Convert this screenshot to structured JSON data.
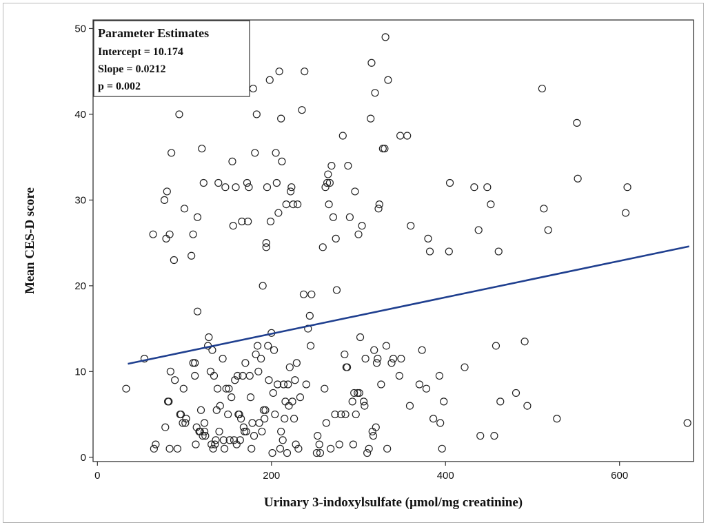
{
  "chart_data": {
    "type": "scatter",
    "xlabel": "Urinary 3-indoxylsulfate (µmol/mg creatinine)",
    "ylabel": "Mean CES-D score",
    "xlim": [
      -5,
      685
    ],
    "ylim": [
      -0.5,
      51
    ],
    "xticks": [
      0,
      200,
      400,
      600
    ],
    "yticks": [
      0,
      10,
      20,
      30,
      40,
      50
    ],
    "grid": false,
    "legend_position": "top-left",
    "parameter_estimates": {
      "title": "Parameter Estimates",
      "lines": [
        "Intercept = 10.174",
        "Slope = 0.0212",
        "p =  0.002"
      ]
    },
    "fit_line": {
      "x": [
        35,
        680
      ],
      "y": [
        10.9,
        24.6
      ],
      "color": "#1f3f8f"
    },
    "marker_color": "#222222",
    "points": [
      [
        33,
        8
      ],
      [
        54,
        11.5
      ],
      [
        64,
        26
      ],
      [
        65,
        1
      ],
      [
        67,
        1.5
      ],
      [
        77,
        30
      ],
      [
        78,
        3.5
      ],
      [
        79,
        25.5
      ],
      [
        80,
        31
      ],
      [
        81,
        6.5
      ],
      [
        82,
        6.5
      ],
      [
        83,
        26
      ],
      [
        83,
        1
      ],
      [
        84,
        10
      ],
      [
        85,
        35.5
      ],
      [
        88,
        23
      ],
      [
        89,
        9
      ],
      [
        92,
        1
      ],
      [
        94,
        40
      ],
      [
        95,
        5
      ],
      [
        96,
        5
      ],
      [
        98,
        4
      ],
      [
        99,
        8
      ],
      [
        100,
        29
      ],
      [
        101,
        4
      ],
      [
        102,
        4.5
      ],
      [
        108,
        23.5
      ],
      [
        110,
        26
      ],
      [
        110,
        11
      ],
      [
        112,
        11
      ],
      [
        112,
        9.5
      ],
      [
        113,
        1.5
      ],
      [
        114,
        3.5
      ],
      [
        115,
        28
      ],
      [
        115,
        17
      ],
      [
        117,
        3
      ],
      [
        118,
        3
      ],
      [
        119,
        5.5
      ],
      [
        120,
        36
      ],
      [
        121,
        2.5
      ],
      [
        122,
        32
      ],
      [
        123,
        3
      ],
      [
        123,
        4
      ],
      [
        124,
        2.5
      ],
      [
        127,
        13
      ],
      [
        128,
        14
      ],
      [
        130,
        10
      ],
      [
        131,
        1.5
      ],
      [
        132,
        12.5
      ],
      [
        133,
        1
      ],
      [
        134,
        9.5
      ],
      [
        135,
        1.5
      ],
      [
        136,
        2
      ],
      [
        137,
        5.5
      ],
      [
        138,
        8
      ],
      [
        139,
        32
      ],
      [
        140,
        3
      ],
      [
        141,
        6
      ],
      [
        144,
        11.5
      ],
      [
        145,
        2
      ],
      [
        146,
        1
      ],
      [
        147,
        31.5
      ],
      [
        148,
        8
      ],
      [
        150,
        5
      ],
      [
        151,
        8
      ],
      [
        152,
        2
      ],
      [
        154,
        7
      ],
      [
        155,
        34.5
      ],
      [
        156,
        27
      ],
      [
        157,
        2
      ],
      [
        158,
        9
      ],
      [
        159,
        31.5
      ],
      [
        160,
        1.5
      ],
      [
        161,
        9.5
      ],
      [
        162,
        5
      ],
      [
        163,
        5
      ],
      [
        164,
        2
      ],
      [
        165,
        4.5
      ],
      [
        166,
        27.5
      ],
      [
        167,
        9.5
      ],
      [
        168,
        3.5
      ],
      [
        169,
        3
      ],
      [
        170,
        11
      ],
      [
        171,
        3
      ],
      [
        172,
        32
      ],
      [
        173,
        27.5
      ],
      [
        174,
        31.5
      ],
      [
        175,
        9.5
      ],
      [
        176,
        7
      ],
      [
        177,
        1
      ],
      [
        178,
        4
      ],
      [
        179,
        43
      ],
      [
        180,
        2.5
      ],
      [
        181,
        35.5
      ],
      [
        182,
        12
      ],
      [
        183,
        40
      ],
      [
        184,
        13
      ],
      [
        185,
        10
      ],
      [
        186,
        4
      ],
      [
        188,
        11.5
      ],
      [
        189,
        3
      ],
      [
        190,
        20
      ],
      [
        191,
        5.5
      ],
      [
        192,
        4.5
      ],
      [
        193,
        5.5
      ],
      [
        194,
        25
      ],
      [
        194,
        24.5
      ],
      [
        195,
        31.5
      ],
      [
        196,
        13
      ],
      [
        197,
        9
      ],
      [
        198,
        44
      ],
      [
        199,
        27.5
      ],
      [
        200,
        14.5
      ],
      [
        201,
        0.5
      ],
      [
        202,
        7.5
      ],
      [
        203,
        12.5
      ],
      [
        204,
        5
      ],
      [
        205,
        35.5
      ],
      [
        206,
        32
      ],
      [
        207,
        8.5
      ],
      [
        208,
        28.5
      ],
      [
        209,
        45
      ],
      [
        210,
        1
      ],
      [
        211,
        3
      ],
      [
        211,
        39.5
      ],
      [
        212,
        34.5
      ],
      [
        213,
        2
      ],
      [
        214,
        8.5
      ],
      [
        215,
        4.5
      ],
      [
        216,
        6.5
      ],
      [
        217,
        29.5
      ],
      [
        218,
        0.5
      ],
      [
        219,
        8.5
      ],
      [
        220,
        6
      ],
      [
        221,
        10.5
      ],
      [
        222,
        31
      ],
      [
        223,
        31.5
      ],
      [
        224,
        6.5
      ],
      [
        225,
        29.5
      ],
      [
        226,
        4.5
      ],
      [
        227,
        9
      ],
      [
        228,
        1.5
      ],
      [
        229,
        11
      ],
      [
        230,
        29.5
      ],
      [
        231,
        1
      ],
      [
        233,
        7
      ],
      [
        235,
        40.5
      ],
      [
        237,
        19
      ],
      [
        238,
        45
      ],
      [
        240,
        8.5
      ],
      [
        242,
        15
      ],
      [
        244,
        16.5
      ],
      [
        245,
        13
      ],
      [
        246,
        19
      ],
      [
        252,
        0.5
      ],
      [
        253,
        2.5
      ],
      [
        255,
        1.5
      ],
      [
        256,
        0.5
      ],
      [
        259,
        24.5
      ],
      [
        261,
        8
      ],
      [
        262,
        31.5
      ],
      [
        263,
        4
      ],
      [
        264,
        32
      ],
      [
        265,
        33
      ],
      [
        266,
        29.5
      ],
      [
        267,
        32
      ],
      [
        268,
        1
      ],
      [
        269,
        34
      ],
      [
        271,
        28
      ],
      [
        273,
        5
      ],
      [
        274,
        25.5
      ],
      [
        275,
        19.5
      ],
      [
        278,
        1.5
      ],
      [
        280,
        5
      ],
      [
        282,
        37.5
      ],
      [
        284,
        12
      ],
      [
        285,
        5
      ],
      [
        286,
        10.5
      ],
      [
        287,
        10.5
      ],
      [
        288,
        34
      ],
      [
        290,
        28
      ],
      [
        293,
        6.5
      ],
      [
        294,
        1.5
      ],
      [
        295,
        7.5
      ],
      [
        296,
        31
      ],
      [
        297,
        5
      ],
      [
        299,
        7.5
      ],
      [
        300,
        26
      ],
      [
        301,
        7.5
      ],
      [
        302,
        14
      ],
      [
        304,
        27
      ],
      [
        306,
        6.5
      ],
      [
        307,
        6
      ],
      [
        308,
        11.5
      ],
      [
        310,
        0.5
      ],
      [
        312,
        1
      ],
      [
        314,
        39.5
      ],
      [
        315,
        46
      ],
      [
        316,
        3
      ],
      [
        317,
        2.5
      ],
      [
        318,
        12.5
      ],
      [
        319,
        42.5
      ],
      [
        320,
        3.5
      ],
      [
        321,
        11
      ],
      [
        322,
        11.5
      ],
      [
        323,
        29
      ],
      [
        324,
        29.5
      ],
      [
        326,
        8.5
      ],
      [
        328,
        36
      ],
      [
        330,
        36
      ],
      [
        331,
        49
      ],
      [
        332,
        13
      ],
      [
        333,
        1
      ],
      [
        334,
        44
      ],
      [
        338,
        11
      ],
      [
        340,
        11.5
      ],
      [
        347,
        9.5
      ],
      [
        348,
        37.5
      ],
      [
        349,
        11.5
      ],
      [
        356,
        37.5
      ],
      [
        359,
        6
      ],
      [
        360,
        27
      ],
      [
        370,
        8.5
      ],
      [
        373,
        12.5
      ],
      [
        378,
        8
      ],
      [
        380,
        25.5
      ],
      [
        382,
        24
      ],
      [
        386,
        4.5
      ],
      [
        393,
        9.5
      ],
      [
        394,
        4
      ],
      [
        396,
        1
      ],
      [
        398,
        6.5
      ],
      [
        404,
        24
      ],
      [
        405,
        32
      ],
      [
        422,
        10.5
      ],
      [
        433,
        31.5
      ],
      [
        438,
        26.5
      ],
      [
        440,
        2.5
      ],
      [
        448,
        31.5
      ],
      [
        452,
        29.5
      ],
      [
        456,
        2.5
      ],
      [
        458,
        13
      ],
      [
        461,
        24
      ],
      [
        463,
        6.5
      ],
      [
        481,
        7.5
      ],
      [
        491,
        13.5
      ],
      [
        494,
        6
      ],
      [
        511,
        43
      ],
      [
        513,
        29
      ],
      [
        518,
        26.5
      ],
      [
        528,
        4.5
      ],
      [
        551,
        39
      ],
      [
        552,
        32.5
      ],
      [
        607,
        28.5
      ],
      [
        609,
        31.5
      ],
      [
        678,
        4
      ]
    ]
  }
}
